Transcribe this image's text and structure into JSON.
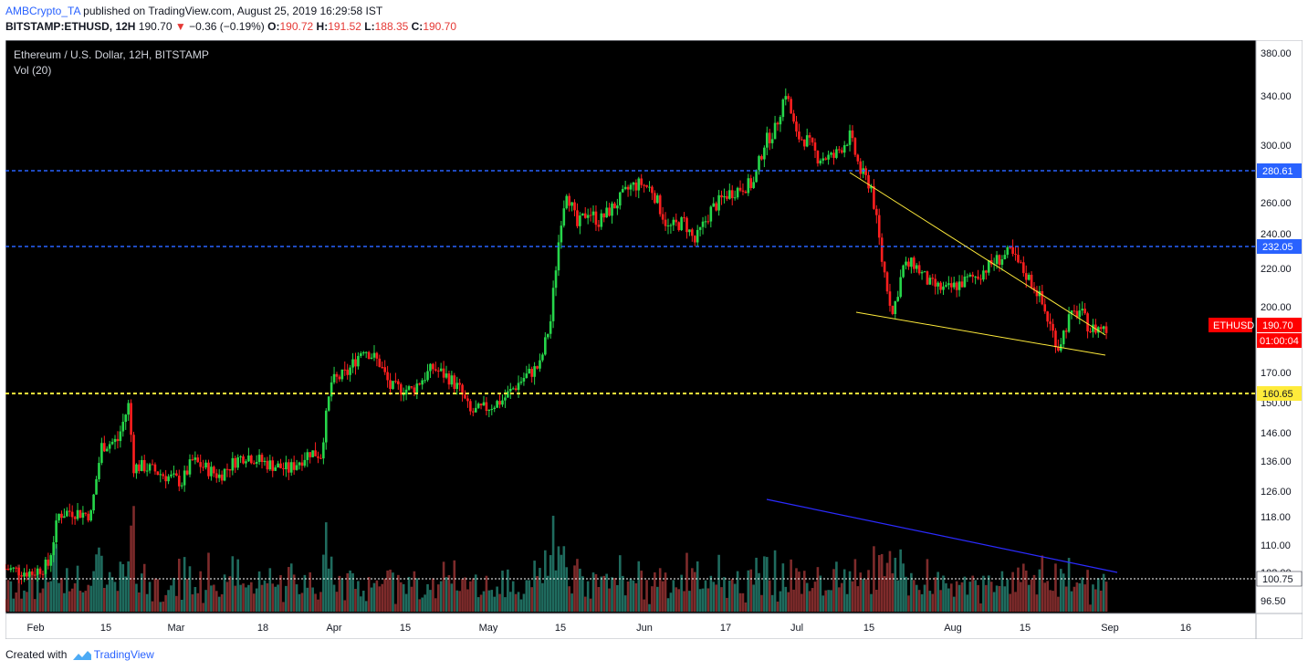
{
  "publish": {
    "author": "AMBCrypto_TA",
    "text": "published on TradingView.com, August 25, 2019 16:29:58 IST"
  },
  "quote": {
    "symbol": "BITSTAMP:ETHUSD, 12H",
    "last": "190.70",
    "arrow": "▼",
    "change": "−0.36 (−0.19%)",
    "o_label": "O:",
    "o": "190.72",
    "h_label": "H:",
    "h": "191.52",
    "l_label": "L:",
    "l": "188.35",
    "c_label": "C:",
    "c": "190.70"
  },
  "chart": {
    "title": "Ethereum / U.S. Dollar, 12H, BITSTAMP",
    "volume_label": "Vol (20)",
    "background": "#000000",
    "up_color": "#26d64a",
    "down_color": "#ff1f1f",
    "price_axis": [
      "380.00",
      "340.00",
      "300.00",
      "260.00",
      "240.00",
      "220.00",
      "200.00",
      "170.00",
      "150.00",
      "146.00",
      "136.00",
      "126.00",
      "118.00",
      "110.00",
      "102.00",
      "96.50"
    ],
    "time_axis": [
      "Feb",
      "15",
      "Mar",
      "18",
      "Apr",
      "15",
      "May",
      "15",
      "Jun",
      "17",
      "Jul",
      "15",
      "Aug",
      "15",
      "Sep",
      "16"
    ],
    "levels": [
      {
        "label": "280.61",
        "color": "#2962ff",
        "style": "dashed"
      },
      {
        "label": "232.05",
        "color": "#2962ff",
        "style": "dashed"
      },
      {
        "label": "160.65",
        "color": "#ffeb3b",
        "style": "dashed"
      },
      {
        "label": "100.75",
        "color": "#ffffff",
        "style": "dotted"
      }
    ],
    "last_price": {
      "symbol": "ETHUSD",
      "price": "190.70",
      "countdown": "01:00:04",
      "color": "#ff0000"
    }
  },
  "chart_data": {
    "type": "candlestick",
    "symbol": "ETHUSD",
    "interval": "12H",
    "exchange": "BITSTAMP",
    "y_scale": "log",
    "ylim": [
      96,
      385
    ],
    "x_range": [
      "2019-01-31",
      "2019-09-22"
    ],
    "close_path": [
      [
        "2019-01-31",
        107
      ],
      [
        "2019-02-05",
        106
      ],
      [
        "2019-02-08",
        108
      ],
      [
        "2019-02-10",
        122
      ],
      [
        "2019-02-12",
        123
      ],
      [
        "2019-02-16",
        122
      ],
      [
        "2019-02-18",
        144
      ],
      [
        "2019-02-21",
        146
      ],
      [
        "2019-02-23",
        159
      ],
      [
        "2019-02-24",
        137
      ],
      [
        "2019-02-26",
        137
      ],
      [
        "2019-03-02",
        134
      ],
      [
        "2019-03-05",
        132
      ],
      [
        "2019-03-07",
        139
      ],
      [
        "2019-03-10",
        136
      ],
      [
        "2019-03-12",
        134
      ],
      [
        "2019-03-15",
        139
      ],
      [
        "2019-03-17",
        141
      ],
      [
        "2019-03-21",
        138
      ],
      [
        "2019-03-25",
        136
      ],
      [
        "2019-03-29",
        142
      ],
      [
        "2019-03-31",
        141
      ],
      [
        "2019-04-02",
        168
      ],
      [
        "2019-04-05",
        172
      ],
      [
        "2019-04-08",
        183
      ],
      [
        "2019-04-11",
        176
      ],
      [
        "2019-04-13",
        166
      ],
      [
        "2019-04-17",
        165
      ],
      [
        "2019-04-21",
        174
      ],
      [
        "2019-04-24",
        170
      ],
      [
        "2019-04-26",
        165
      ],
      [
        "2019-04-28",
        156
      ],
      [
        "2019-05-01",
        158
      ],
      [
        "2019-05-04",
        161
      ],
      [
        "2019-05-08",
        170
      ],
      [
        "2019-05-11",
        175
      ],
      [
        "2019-05-13",
        195
      ],
      [
        "2019-05-15",
        250
      ],
      [
        "2019-05-16",
        268
      ],
      [
        "2019-05-18",
        245
      ],
      [
        "2019-05-20",
        255
      ],
      [
        "2019-05-22",
        248
      ],
      [
        "2019-05-25",
        258
      ],
      [
        "2019-05-28",
        270
      ],
      [
        "2019-05-30",
        272
      ],
      [
        "2019-06-01",
        268
      ],
      [
        "2019-06-04",
        244
      ],
      [
        "2019-06-07",
        248
      ],
      [
        "2019-06-09",
        236
      ],
      [
        "2019-06-12",
        255
      ],
      [
        "2019-06-15",
        265
      ],
      [
        "2019-06-18",
        270
      ],
      [
        "2019-06-20",
        272
      ],
      [
        "2019-06-22",
        300
      ],
      [
        "2019-06-24",
        310
      ],
      [
        "2019-06-26",
        340
      ],
      [
        "2019-06-28",
        305
      ],
      [
        "2019-06-30",
        302
      ],
      [
        "2019-07-02",
        290
      ],
      [
        "2019-07-05",
        290
      ],
      [
        "2019-07-08",
        305
      ],
      [
        "2019-07-10",
        280
      ],
      [
        "2019-07-12",
        270
      ],
      [
        "2019-07-14",
        226
      ],
      [
        "2019-07-16",
        198
      ],
      [
        "2019-07-18",
        222
      ],
      [
        "2019-07-20",
        224
      ],
      [
        "2019-07-23",
        213
      ],
      [
        "2019-07-26",
        210
      ],
      [
        "2019-07-29",
        214
      ],
      [
        "2019-08-01",
        218
      ],
      [
        "2019-08-04",
        225
      ],
      [
        "2019-08-07",
        230
      ],
      [
        "2019-08-09",
        222
      ],
      [
        "2019-08-12",
        210
      ],
      [
        "2019-08-14",
        196
      ],
      [
        "2019-08-16",
        183
      ],
      [
        "2019-08-18",
        196
      ],
      [
        "2019-08-20",
        200
      ],
      [
        "2019-08-22",
        191
      ],
      [
        "2019-08-24",
        192
      ],
      [
        "2019-08-25",
        190.7
      ]
    ]
  }
}
